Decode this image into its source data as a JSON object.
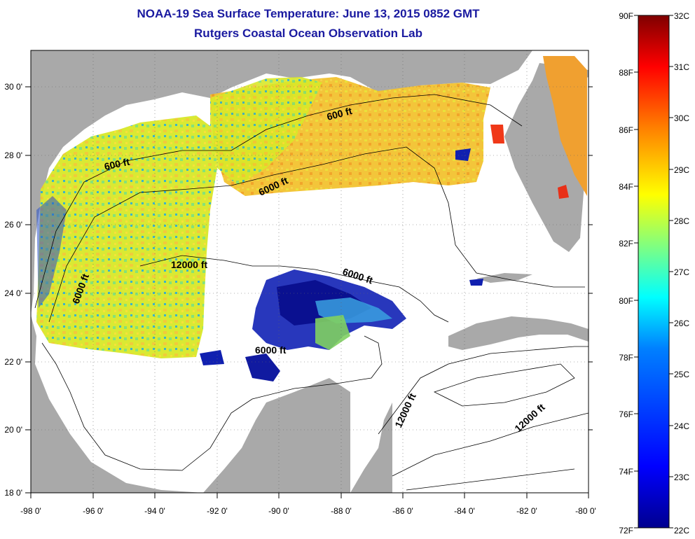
{
  "header": {
    "title": "NOAA-19 Sea Surface Temperature:  June 13, 2015 0852 GMT",
    "subtitle": "Rutgers Coastal Ocean Observation Lab"
  },
  "map": {
    "lon_ticks": [
      "-98 0'",
      "-96 0'",
      "-94 0'",
      "-92 0'",
      "-90 0'",
      "-88 0'",
      "-86 0'",
      "-84 0'",
      "-82 0'",
      "-80 0'"
    ],
    "lat_ticks": [
      "30 0'",
      "28 0'",
      "26 0'",
      "24 0'",
      "22 0'",
      "20 0'",
      "18 0'"
    ],
    "contour_labels": [
      "600 ft",
      "600 ft",
      "6000 ft",
      "12000 ft",
      "6000 ft",
      "6000 ft",
      "6000 ft",
      "12000 ft",
      "12000 ft"
    ]
  },
  "colorbar": {
    "f_labels": [
      "90F",
      "88F",
      "86F",
      "84F",
      "82F",
      "80F",
      "78F",
      "76F",
      "74F",
      "72F"
    ],
    "c_labels": [
      "32C",
      "31C",
      "30C",
      "29C",
      "28C",
      "27C",
      "26C",
      "25C",
      "24C",
      "23C",
      "22C"
    ],
    "colors": [
      "#7f0000",
      "#ff0000",
      "#ff8000",
      "#ffff00",
      "#80ff80",
      "#00ffff",
      "#0080ff",
      "#0000ff",
      "#00008f"
    ]
  }
}
